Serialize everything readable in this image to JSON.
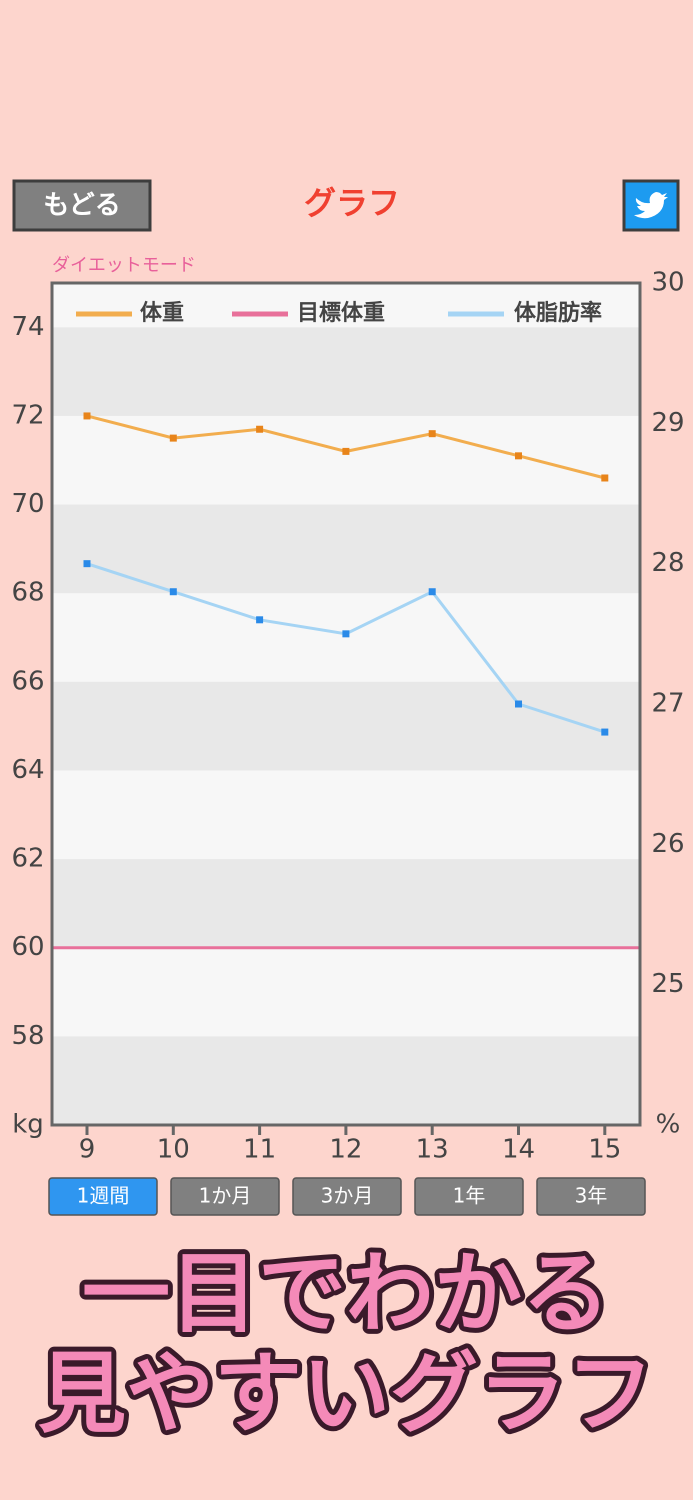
{
  "header": {
    "back_button": "もどる",
    "title": "グラフ"
  },
  "mode_label": "ダイエットモード",
  "chart_data": {
    "type": "line",
    "categories": [
      "9",
      "10",
      "11",
      "12",
      "13",
      "14",
      "15"
    ],
    "series": [
      {
        "name": "体重",
        "color": "#f2ad4e",
        "marker_color": "#e8841a",
        "values": [
          72.0,
          71.5,
          71.7,
          71.2,
          71.6,
          71.1,
          70.6
        ]
      },
      {
        "name": "体脂肪率",
        "color": "#a5d4f4",
        "marker_color": "#2a8ae8",
        "axis": "y2",
        "values": [
          28.0,
          27.8,
          27.6,
          27.5,
          27.8,
          27.0,
          26.8
        ]
      }
    ],
    "target_line": {
      "name": "目標体重",
      "color": "#e8709a",
      "value": 60
    },
    "ylim": [
      56,
      75
    ],
    "yticks": [
      {
        "value": 56,
        "label": "kg"
      },
      58,
      60,
      62,
      64,
      66,
      68,
      70,
      72,
      74
    ],
    "y2lim": [
      24,
      30
    ],
    "y2ticks": [
      {
        "value": 24,
        "label": "%"
      },
      25,
      26,
      27,
      28,
      29,
      30
    ]
  },
  "range_buttons": {
    "options": [
      "1週間",
      "1か月",
      "3か月",
      "1年",
      "3年"
    ],
    "selected": 0
  },
  "caption": [
    "一目でわかる",
    "見やすいグラフ"
  ]
}
